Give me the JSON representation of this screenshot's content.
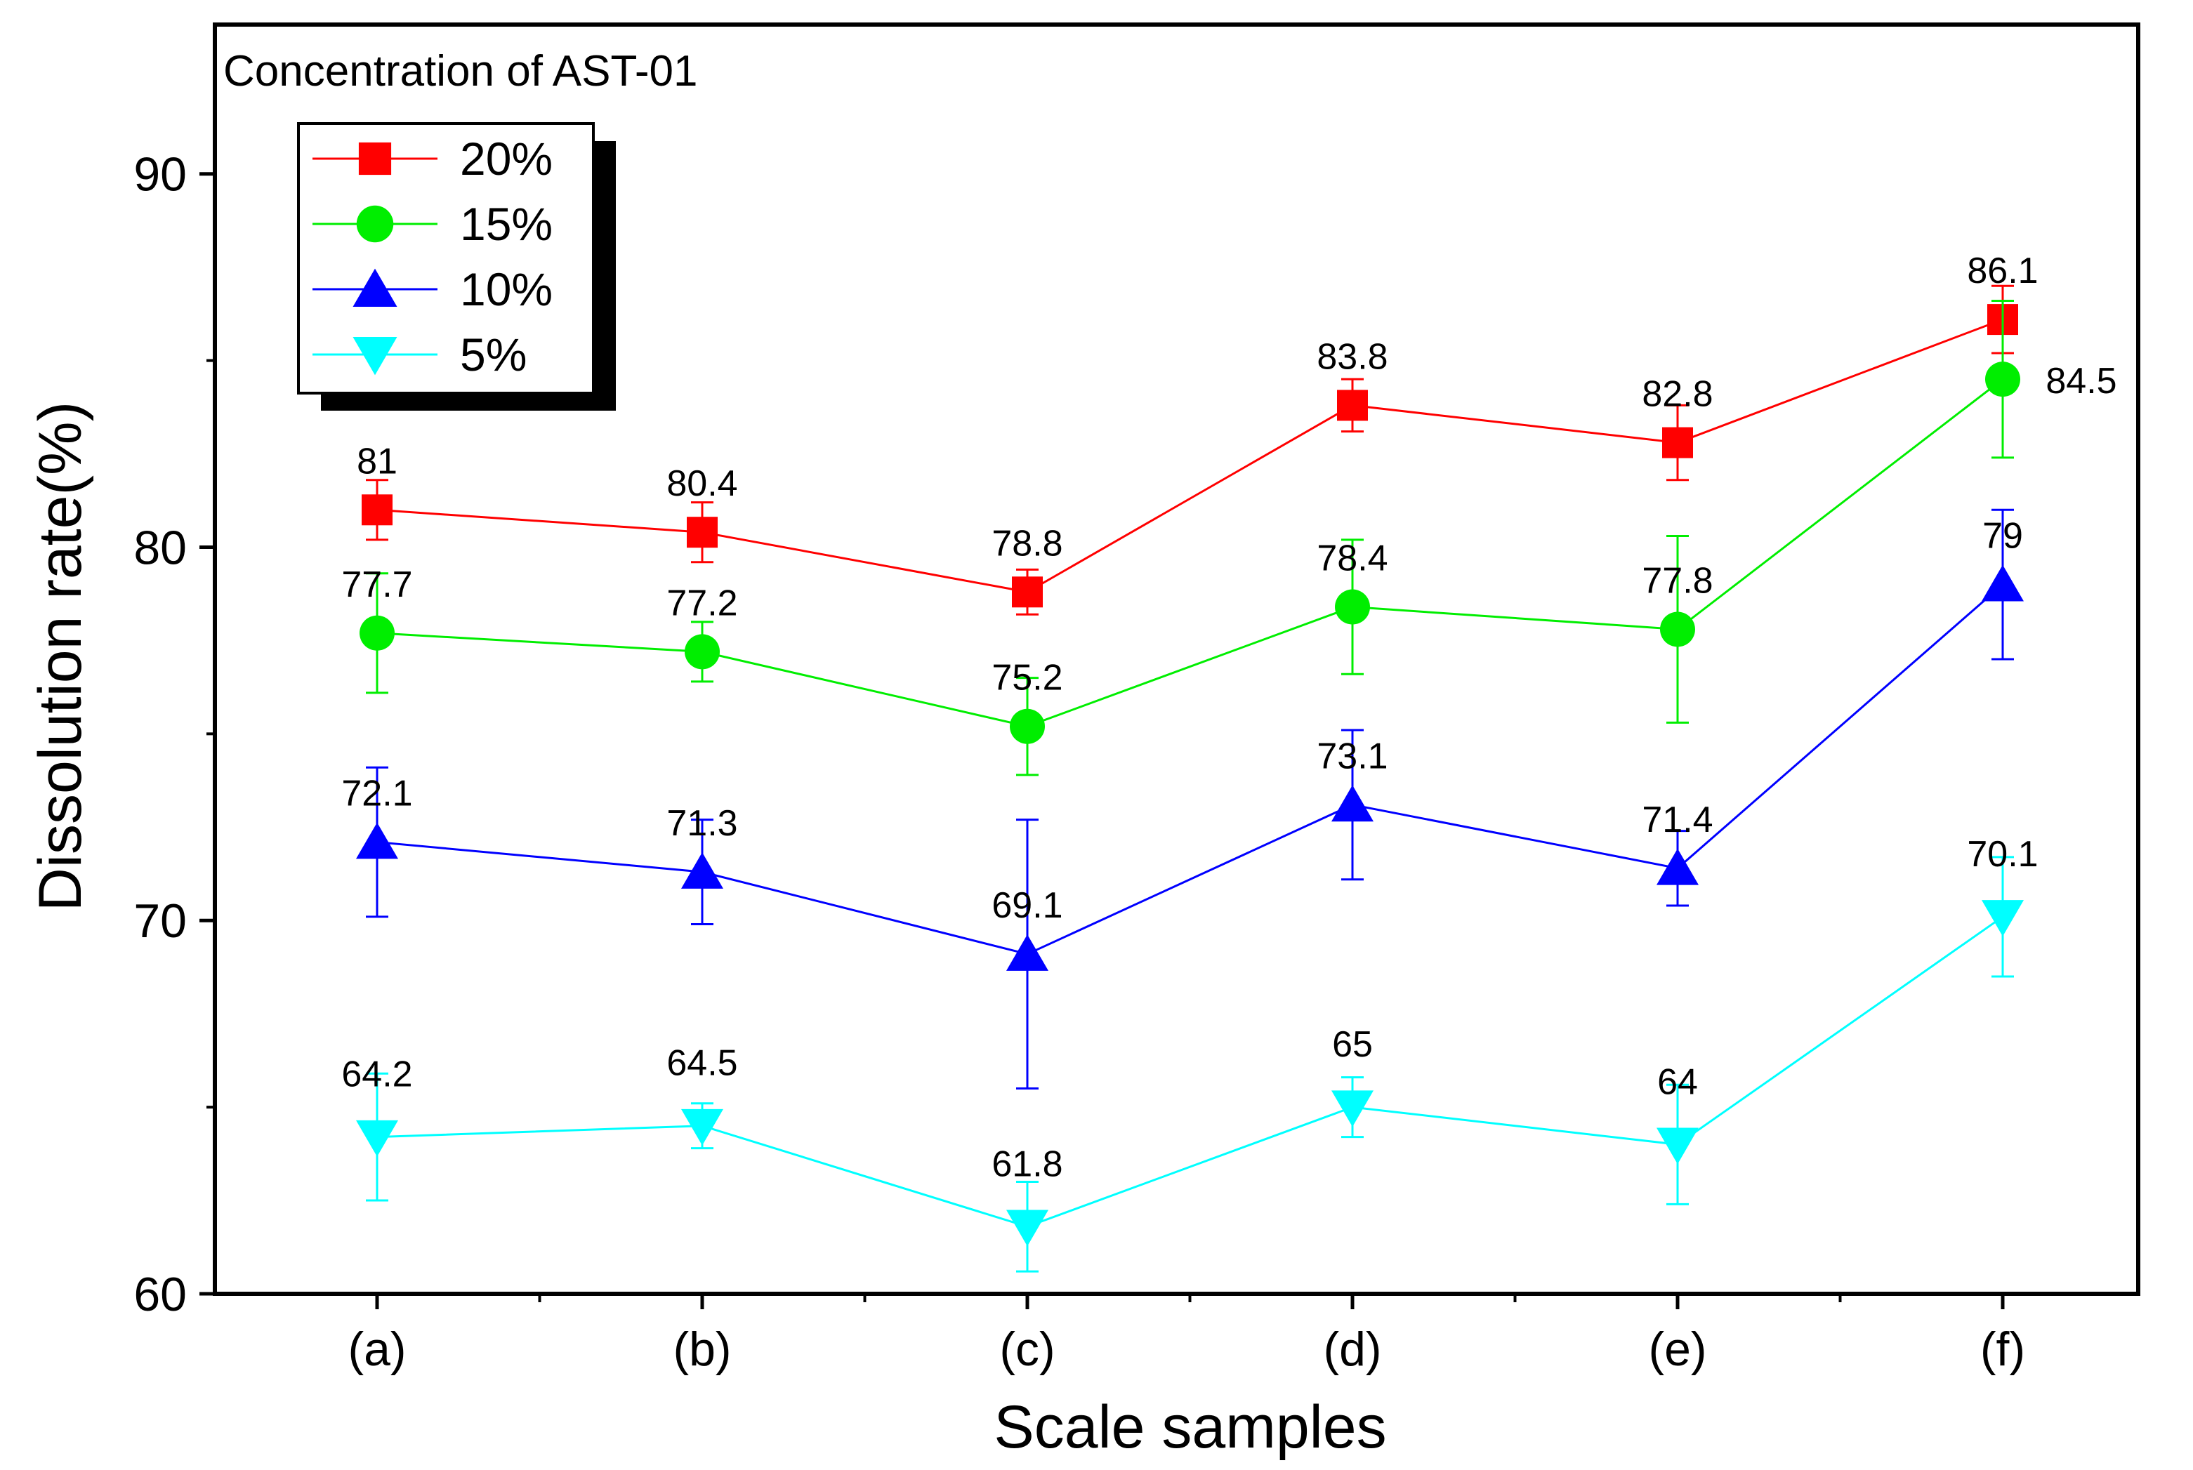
{
  "chart_data": {
    "type": "line",
    "title": "Concentration of AST-01",
    "xlabel": "Scale samples",
    "ylabel": "Dissolution rate(%)",
    "categories": [
      "(a)",
      "(b)",
      "(c)",
      "(d)",
      "(e)",
      "(f)"
    ],
    "ylim": [
      60,
      94
    ],
    "yticks": [
      60,
      70,
      80,
      90
    ],
    "yticks_minor": [
      65,
      75,
      85
    ],
    "grid": false,
    "legend_position": "top-left",
    "series": [
      {
        "name": "20%",
        "color": "#ff0000",
        "marker": "square",
        "values": [
          81,
          80.4,
          78.8,
          83.8,
          82.8,
          86.1
        ],
        "labels": [
          "81",
          "80.4",
          "78.8",
          "83.8",
          "82.8",
          "86.1"
        ],
        "error_low": [
          0.8,
          0.8,
          0.6,
          0.7,
          1.0,
          0.9
        ],
        "error_high": [
          0.8,
          0.8,
          0.6,
          0.7,
          1.0,
          0.9
        ]
      },
      {
        "name": "15%",
        "color": "#00ee00",
        "marker": "circle",
        "values": [
          77.7,
          77.2,
          75.2,
          78.4,
          77.8,
          84.5
        ],
        "labels": [
          "77.7",
          "77.2",
          "75.2",
          "78.4",
          "77.8",
          "84.5"
        ],
        "error_low": [
          1.6,
          0.8,
          1.3,
          1.8,
          2.5,
          2.1
        ],
        "error_high": [
          1.6,
          0.8,
          1.3,
          1.8,
          2.5,
          2.1
        ]
      },
      {
        "name": "10%",
        "color": "#0000ff",
        "marker": "triangle-up",
        "values": [
          72.1,
          71.3,
          69.1,
          73.1,
          71.4,
          79
        ],
        "labels": [
          "72.1",
          "71.3",
          "69.1",
          "73.1",
          "71.4",
          "79"
        ],
        "error_low": [
          2.0,
          1.4,
          3.6,
          2.0,
          1.0,
          2.0
        ],
        "error_high": [
          2.0,
          1.4,
          3.6,
          2.0,
          1.0,
          2.0
        ]
      },
      {
        "name": "5%",
        "color": "#00ffff",
        "marker": "triangle-down",
        "values": [
          64.2,
          64.5,
          61.8,
          65,
          64,
          70.1
        ],
        "labels": [
          "64.2",
          "64.5",
          "61.8",
          "65",
          "64",
          "70.1"
        ],
        "error_low": [
          1.7,
          0.6,
          1.2,
          0.8,
          1.6,
          1.6
        ],
        "error_high": [
          1.7,
          0.6,
          1.2,
          0.8,
          1.6,
          1.6
        ]
      }
    ]
  }
}
